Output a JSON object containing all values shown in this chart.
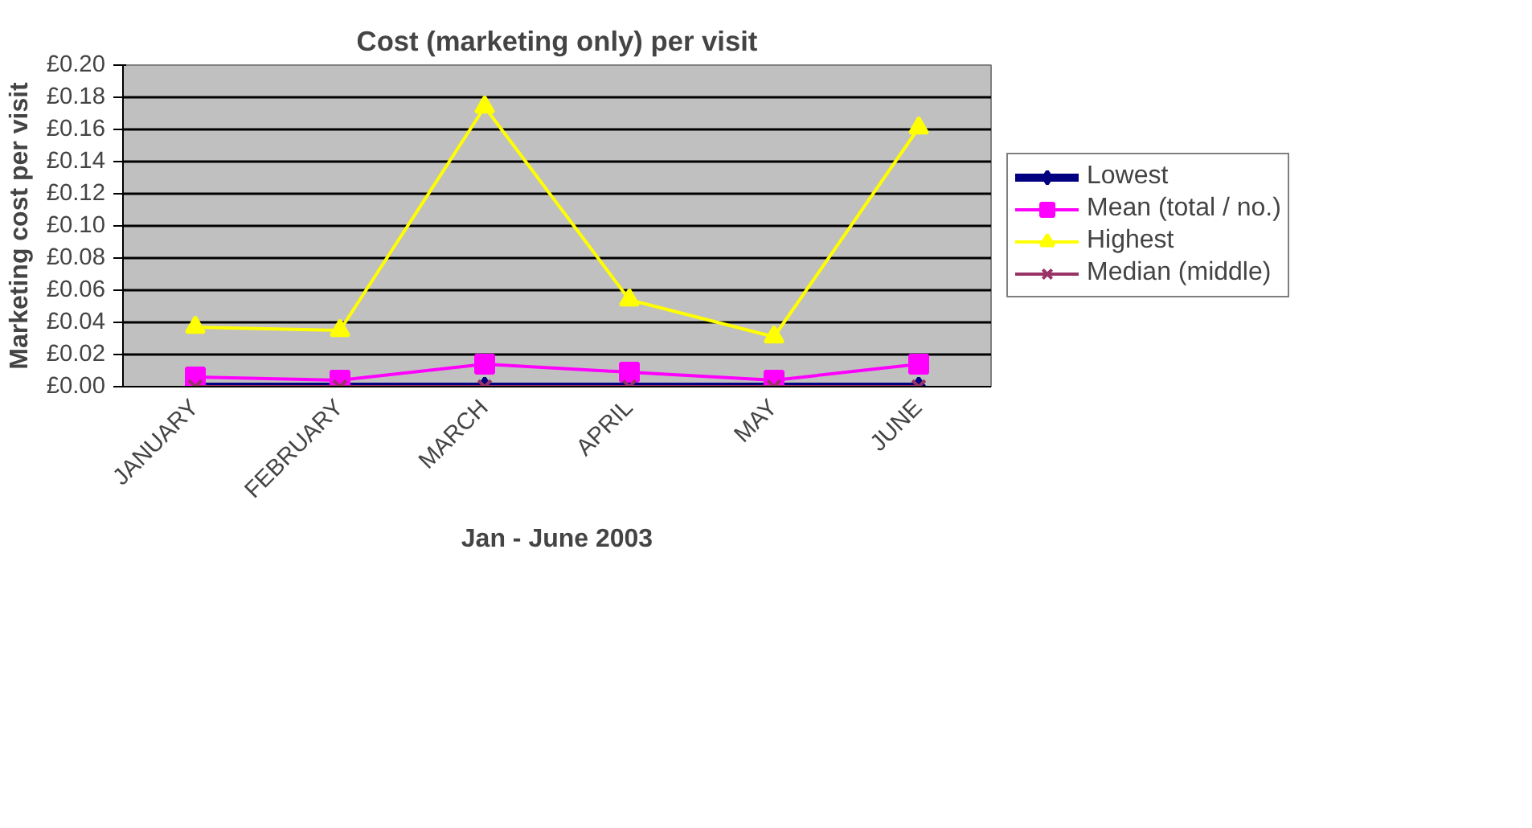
{
  "chart_data": {
    "type": "line",
    "title": "Cost (marketing only) per visit",
    "xlabel": "Jan - June 2003",
    "ylabel": "Marketing cost per visit",
    "categories": [
      "JANUARY",
      "FEBRUARY",
      "MARCH",
      "APRIL",
      "MAY",
      "JUNE"
    ],
    "series": [
      {
        "name": "Lowest",
        "color": "#000080",
        "marker": "diamond",
        "values": [
          0,
          0,
          0,
          0,
          0,
          0
        ]
      },
      {
        "name": "Mean (total / no.)",
        "color": "#ff00ff",
        "marker": "square",
        "values": [
          0.006,
          0.004,
          0.014,
          0.009,
          0.004,
          0.014
        ]
      },
      {
        "name": "Highest",
        "color": "#ffff00",
        "marker": "triangle",
        "values": [
          0.037,
          0.035,
          0.174,
          0.054,
          0.031,
          0.161
        ]
      },
      {
        "name": "Median (middle)",
        "color": "#993366",
        "marker": "cross",
        "values": [
          0,
          0,
          0,
          0,
          0,
          0
        ]
      }
    ],
    "ylim": [
      0,
      0.2
    ],
    "yticks": [
      {
        "value": 0,
        "label": "£0.00"
      },
      {
        "value": 0.02,
        "label": "£0.02"
      },
      {
        "value": 0.04,
        "label": "£0.04"
      },
      {
        "value": 0.06,
        "label": "£0.06"
      },
      {
        "value": 0.08,
        "label": "£0.08"
      },
      {
        "value": 0.1,
        "label": "£0.10"
      },
      {
        "value": 0.12,
        "label": "£0.12"
      },
      {
        "value": 0.14,
        "label": "£0.14"
      },
      {
        "value": 0.16,
        "label": "£0.16"
      },
      {
        "value": 0.18,
        "label": "£0.18"
      },
      {
        "value": 0.2,
        "label": "£0.20"
      }
    ],
    "grid": "y",
    "legend": "right",
    "line_style": "solid"
  }
}
